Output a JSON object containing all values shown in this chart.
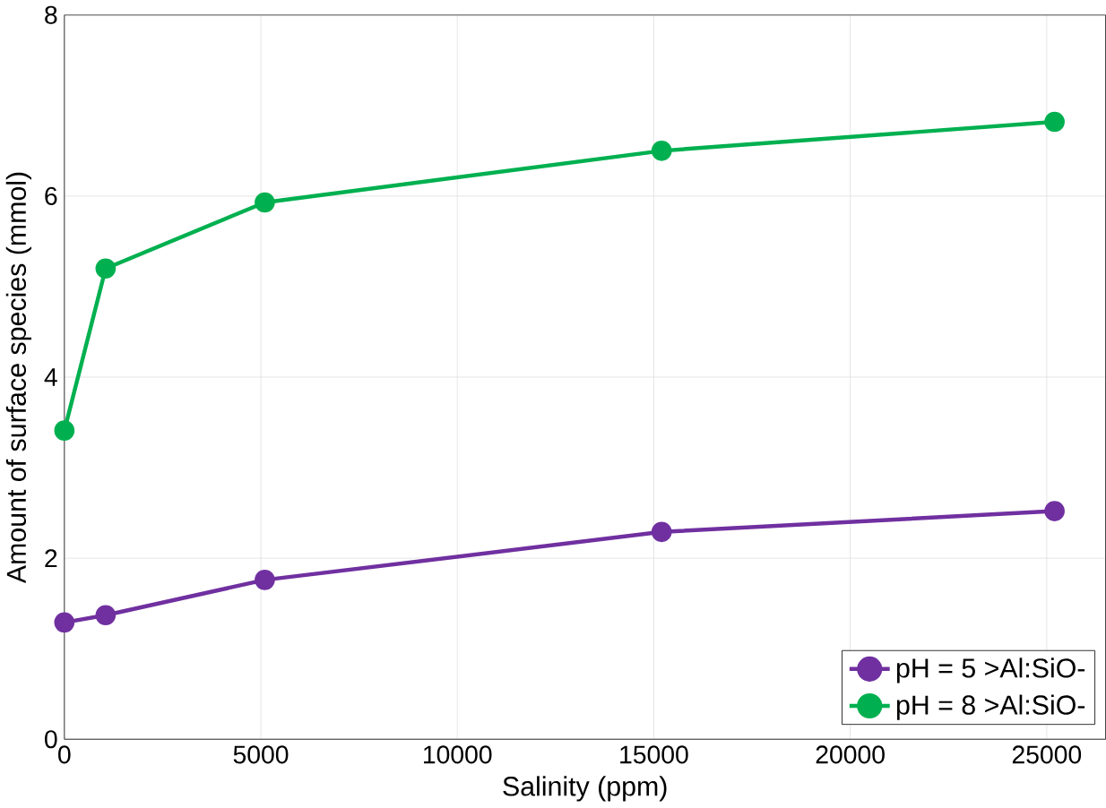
{
  "chart_data": {
    "type": "line",
    "xlabel": "Salinity (ppm)",
    "ylabel": "Amount of  surface species (mmol)",
    "x": [
      0,
      1050,
      5100,
      15200,
      25200
    ],
    "series": [
      {
        "name": "pH = 5 >Al:SiO-",
        "color": "#7030a0",
        "values": [
          1.29,
          1.37,
          1.76,
          2.29,
          2.52
        ]
      },
      {
        "name": "pH = 8 >Al:SiO-",
        "color": "#00b050",
        "values": [
          3.41,
          5.2,
          5.93,
          6.5,
          6.82
        ]
      }
    ],
    "xlim": [
      0,
      26500
    ],
    "ylim": [
      0,
      8
    ],
    "xticks": [
      0,
      5000,
      10000,
      15000,
      20000,
      25000
    ],
    "yticks": [
      0,
      2,
      4,
      6,
      8
    ],
    "grid": true,
    "legend": "bottom right",
    "marker": "circle",
    "line_style": "solid"
  }
}
